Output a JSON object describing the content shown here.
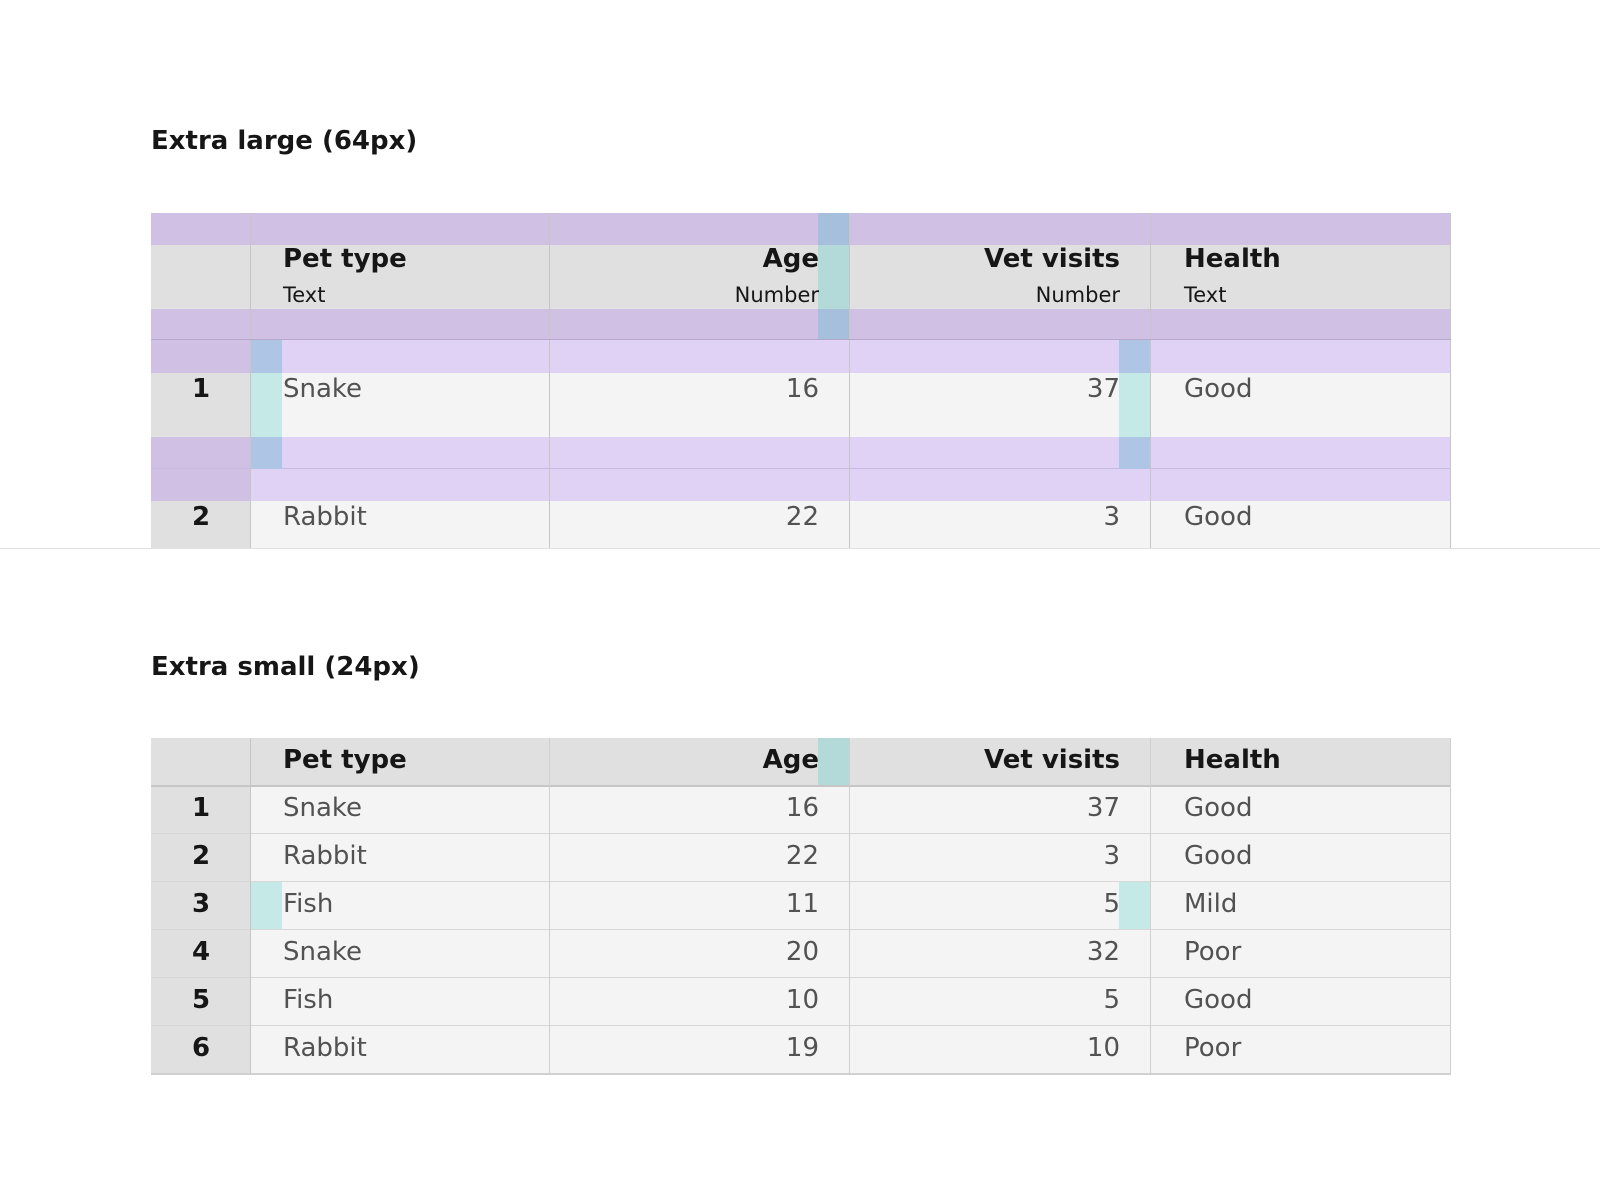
{
  "section_large": {
    "title": "Extra large (64px)",
    "headers": [
      {
        "label": "Pet type",
        "sub": "Text"
      },
      {
        "label": "Age",
        "sub": "Number"
      },
      {
        "label": "Vet visits",
        "sub": "Number"
      },
      {
        "label": "Health",
        "sub": "Text"
      }
    ],
    "rows": [
      {
        "num": "1",
        "pet": "Snake",
        "age": "16",
        "visits": "37",
        "health": "Good"
      },
      {
        "num": "2",
        "pet": "Rabbit",
        "age": "22",
        "visits": "3",
        "health": "Good"
      }
    ]
  },
  "section_small": {
    "title": "Extra small (24px)",
    "headers": [
      {
        "label": "Pet type"
      },
      {
        "label": "Age"
      },
      {
        "label": "Vet visits"
      },
      {
        "label": "Health"
      }
    ],
    "rows": [
      {
        "num": "1",
        "pet": "Snake",
        "age": "16",
        "visits": "37",
        "health": "Good"
      },
      {
        "num": "2",
        "pet": "Rabbit",
        "age": "22",
        "visits": "3",
        "health": "Good"
      },
      {
        "num": "3",
        "pet": "Fish",
        "age": "11",
        "visits": "5",
        "health": "Mild"
      },
      {
        "num": "4",
        "pet": "Snake",
        "age": "20",
        "visits": "32",
        "health": "Poor"
      },
      {
        "num": "5",
        "pet": "Fish",
        "age": "10",
        "visits": "5",
        "health": "Good"
      },
      {
        "num": "6",
        "pet": "Rabbit",
        "age": "19",
        "visits": "10",
        "health": "Poor"
      }
    ]
  },
  "colors": {
    "header_bg": "#e0e0e0",
    "cell_bg": "#f4f4f4",
    "rownum_bg": "#e0e0e0",
    "spacing_purple_dark": "#d0c0e4",
    "spacing_purple_light": "#e0d2f4",
    "padding_teal": "#c5e9e6",
    "padding_blue": "#aec5e6"
  }
}
